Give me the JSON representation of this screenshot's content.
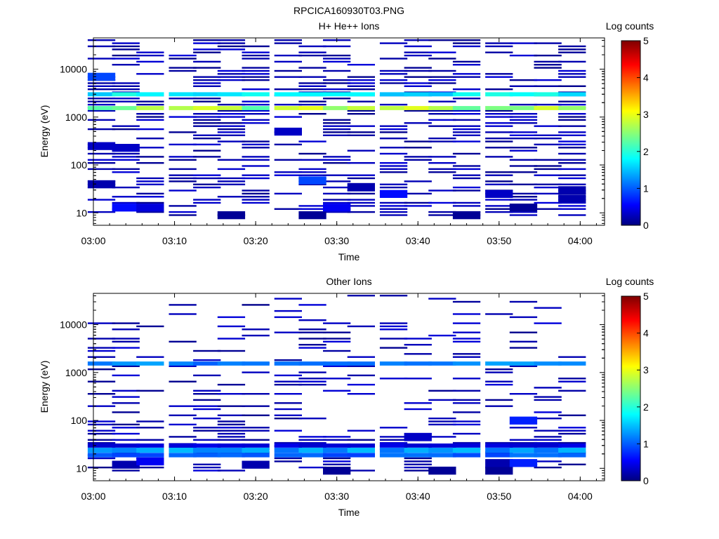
{
  "figure_title": "RPCICA160930T03.PNG",
  "chart_data": [
    {
      "type": "heatmap",
      "title": "H+ He++ Ions",
      "xlabel": "Time",
      "ylabel": "Energy (eV)",
      "y_scale": "log",
      "ylim": [
        5.5,
        45000
      ],
      "xlim": [
        "03:00",
        "04:03"
      ],
      "x_ticks": [
        "03:00",
        "03:10",
        "03:20",
        "03:30",
        "03:40",
        "03:50",
        "04:00"
      ],
      "y_ticks": [
        "10",
        "100",
        "1000",
        "10000"
      ],
      "colorbar": {
        "label": "Log counts",
        "min": 0,
        "max": 5,
        "ticks": [
          "0",
          "1",
          "2",
          "3",
          "4",
          "5"
        ]
      },
      "time_bins": [
        "03:01",
        "03:04",
        "03:07",
        "03:11",
        "03:14",
        "03:17",
        "03:20",
        "03:24",
        "03:27",
        "03:30",
        "03:33",
        "03:37",
        "03:40",
        "03:43",
        "03:46",
        "03:50",
        "03:53",
        "03:56",
        "03:59"
      ],
      "bands": [
        {
          "e_low": 1400,
          "e_high": 1700,
          "value": 2.6
        },
        {
          "e_low": 2700,
          "e_high": 3300,
          "value": 1.7
        }
      ],
      "cells": [
        {
          "t": 0,
          "e": 40,
          "value": 0.2
        },
        {
          "t": 0,
          "e": 250,
          "value": 0.3
        },
        {
          "t": 0,
          "e": 7000,
          "value": 0.9
        },
        {
          "t": 1,
          "e": 13,
          "value": 0.6
        },
        {
          "t": 1,
          "e": 230,
          "value": 0.3
        },
        {
          "t": 2,
          "e": 13,
          "value": 0.4
        },
        {
          "t": 5,
          "e": 9,
          "value": 0.1
        },
        {
          "t": 7,
          "e": 500,
          "value": 0.3
        },
        {
          "t": 8,
          "e": 9,
          "value": 0.1
        },
        {
          "t": 8,
          "e": 48,
          "value": 0.9
        },
        {
          "t": 9,
          "e": 13,
          "value": 0.5
        },
        {
          "t": 10,
          "e": 35,
          "value": 0.2
        },
        {
          "t": 11,
          "e": 25,
          "value": 0.6
        },
        {
          "t": 14,
          "e": 9,
          "value": 0.1
        },
        {
          "t": 15,
          "e": 25,
          "value": 0.3
        },
        {
          "t": 16,
          "e": 13,
          "value": 0.1
        },
        {
          "t": 18,
          "e": 20,
          "value": 0.2
        },
        {
          "t": 18,
          "e": 30,
          "value": 0.2
        }
      ],
      "fill_density": 0.42
    },
    {
      "type": "heatmap",
      "title": "Other Ions",
      "xlabel": "Time",
      "ylabel": "Energy (eV)",
      "y_scale": "log",
      "ylim": [
        5.5,
        45000
      ],
      "xlim": [
        "03:00",
        "04:03"
      ],
      "x_ticks": [
        "03:00",
        "03:10",
        "03:20",
        "03:30",
        "03:40",
        "03:50",
        "04:00"
      ],
      "y_ticks": [
        "10",
        "100",
        "1000",
        "10000"
      ],
      "colorbar": {
        "label": "Log counts",
        "min": 0,
        "max": 5,
        "ticks": [
          "0",
          "1",
          "2",
          "3",
          "4",
          "5"
        ]
      },
      "time_bins": [
        "03:01",
        "03:04",
        "03:07",
        "03:11",
        "03:14",
        "03:17",
        "03:20",
        "03:24",
        "03:27",
        "03:30",
        "03:33",
        "03:37",
        "03:40",
        "03:43",
        "03:46",
        "03:50",
        "03:53",
        "03:56",
        "03:59"
      ],
      "bands": [
        {
          "e_low": 1400,
          "e_high": 1700,
          "value": 1.2
        },
        {
          "e_low": 17,
          "e_high": 21,
          "value": 1.0
        },
        {
          "e_low": 21,
          "e_high": 27,
          "value": 1.3
        },
        {
          "e_low": 27,
          "e_high": 33,
          "value": 0.4
        }
      ],
      "cells": [
        {
          "t": 1,
          "e": 12,
          "value": 0.2
        },
        {
          "t": 2,
          "e": 14,
          "value": 0.5
        },
        {
          "t": 3,
          "e": 28,
          "value": 0.2
        },
        {
          "t": 6,
          "e": 12,
          "value": 0.2
        },
        {
          "t": 9,
          "e": 9,
          "value": 0.1
        },
        {
          "t": 12,
          "e": 45,
          "value": 0.3
        },
        {
          "t": 13,
          "e": 9,
          "value": 0.1
        },
        {
          "t": 15,
          "e": 9,
          "value": 0.1
        },
        {
          "t": 15,
          "e": 13,
          "value": 0.2
        },
        {
          "t": 16,
          "e": 13,
          "value": 0.7
        },
        {
          "t": 16,
          "e": 100,
          "value": 0.7
        }
      ],
      "fill_density": 0.22
    }
  ]
}
